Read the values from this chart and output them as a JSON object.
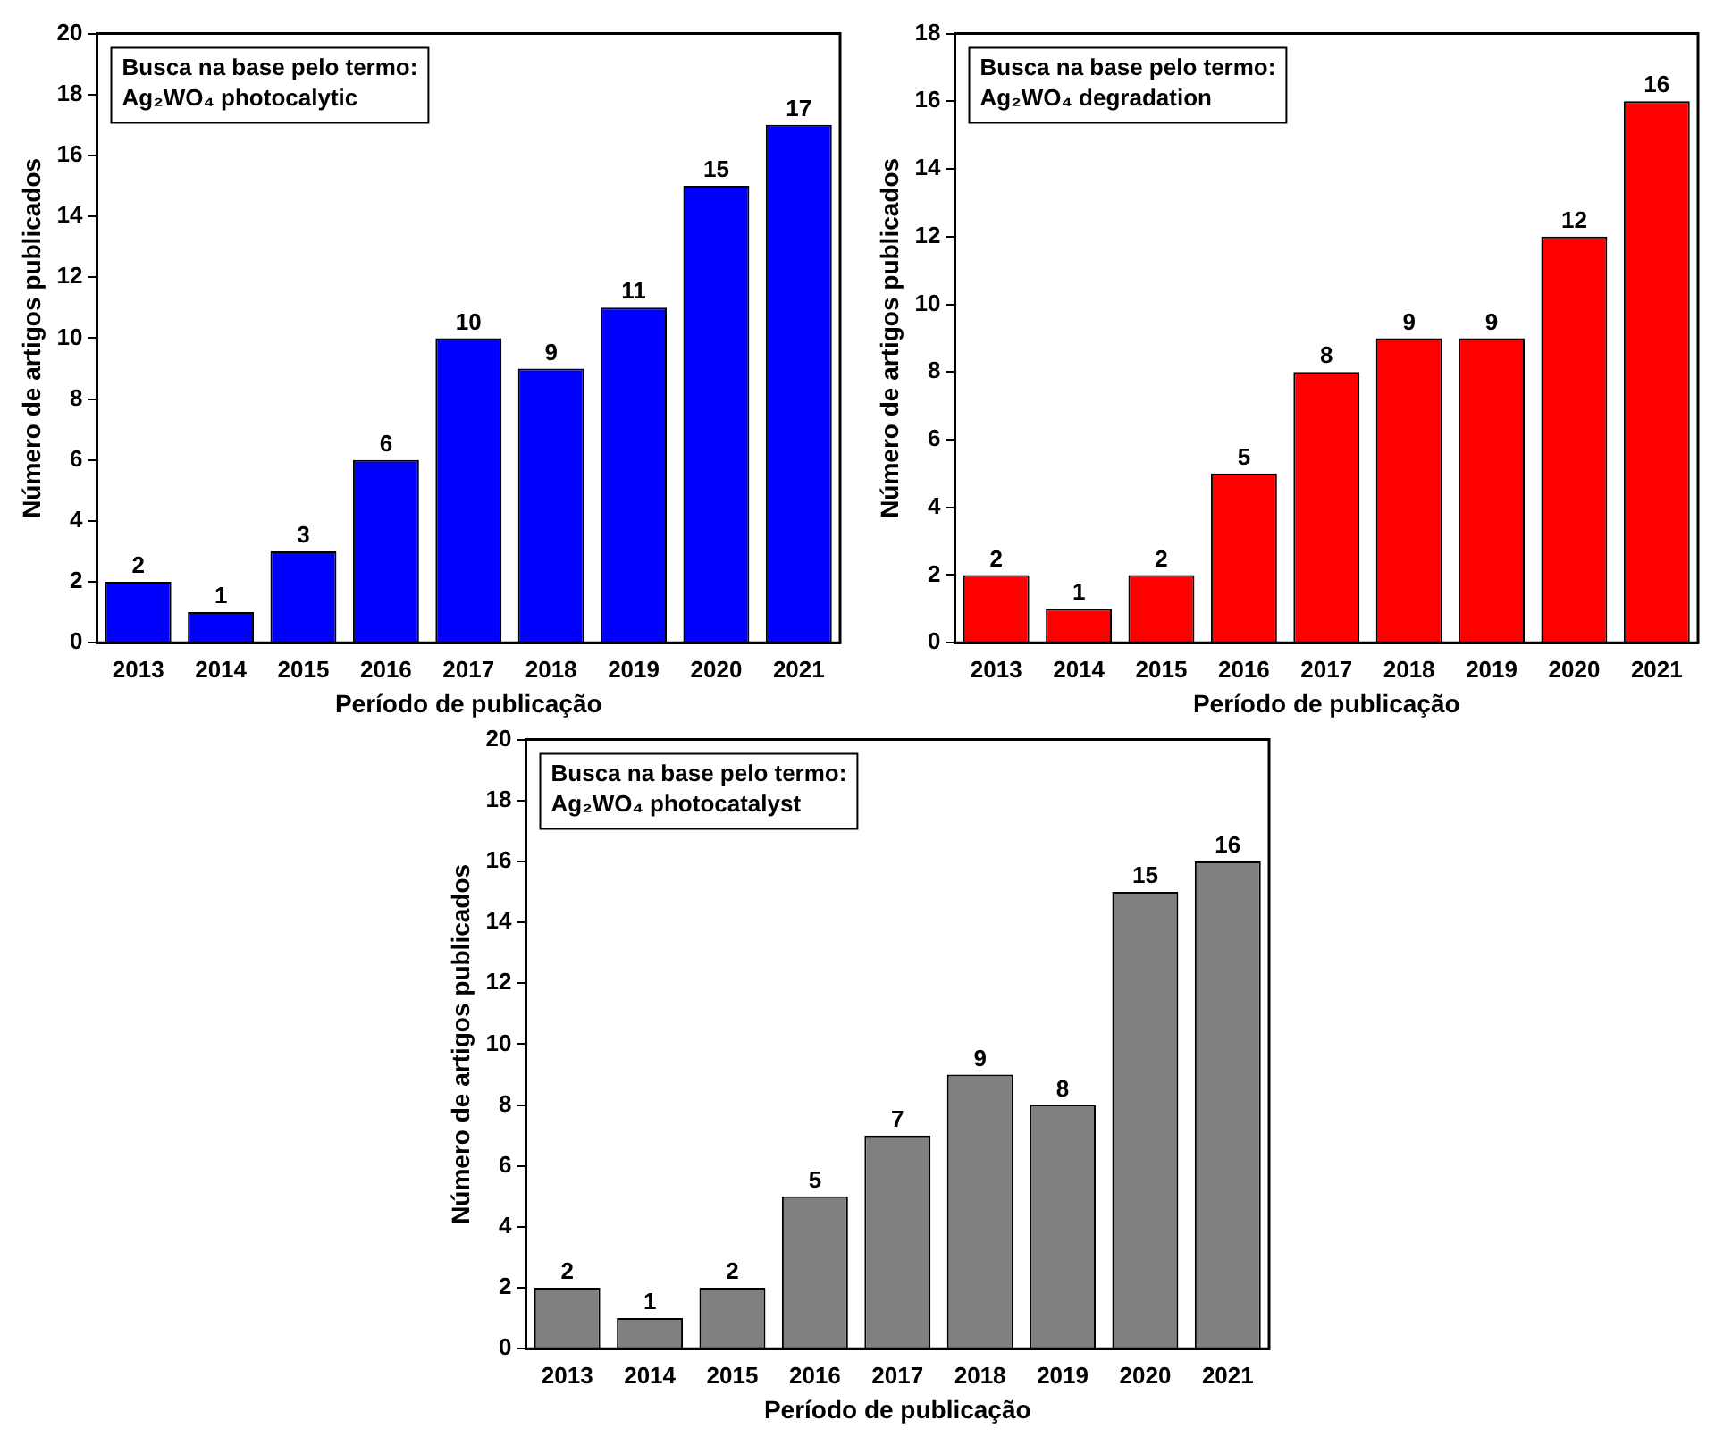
{
  "chart_data": [
    {
      "type": "bar",
      "categories": [
        "2013",
        "2014",
        "2015",
        "2016",
        "2017",
        "2018",
        "2019",
        "2020",
        "2021"
      ],
      "values": [
        2,
        1,
        3,
        6,
        10,
        9,
        11,
        15,
        17
      ],
      "color": "#0000ff",
      "ylim": [
        0,
        20
      ],
      "yticks": [
        0,
        2,
        4,
        6,
        8,
        10,
        12,
        14,
        16,
        18,
        20
      ],
      "xlabel": "Período de publicação",
      "ylabel": "Número de artigos publicados",
      "data_labels": true,
      "annotations": [
        "Busca na base pelo termo:",
        "Ag₂WO₄ photocalytic"
      ]
    },
    {
      "type": "bar",
      "categories": [
        "2013",
        "2014",
        "2015",
        "2016",
        "2017",
        "2018",
        "2019",
        "2020",
        "2021"
      ],
      "values": [
        2,
        1,
        2,
        5,
        8,
        9,
        9,
        12,
        16
      ],
      "color": "#ff0000",
      "ylim": [
        0,
        18
      ],
      "yticks": [
        0,
        2,
        4,
        6,
        8,
        10,
        12,
        14,
        16,
        18
      ],
      "xlabel": "Período de publicação",
      "ylabel": "Número de artigos publicados",
      "data_labels": true,
      "annotations": [
        "Busca na base pelo termo:",
        "Ag₂WO₄ degradation"
      ]
    },
    {
      "type": "bar",
      "categories": [
        "2013",
        "2014",
        "2015",
        "2016",
        "2017",
        "2018",
        "2019",
        "2020",
        "2021"
      ],
      "values": [
        2,
        1,
        2,
        5,
        7,
        9,
        8,
        15,
        16
      ],
      "color": "#808080",
      "ylim": [
        0,
        20
      ],
      "yticks": [
        0,
        2,
        4,
        6,
        8,
        10,
        12,
        14,
        16,
        18,
        20
      ],
      "xlabel": "Período de publicação",
      "ylabel": "Número de artigos publicados",
      "data_labels": true,
      "annotations": [
        "Busca na base pelo termo:",
        "Ag₂WO₄ photocatalyst"
      ]
    }
  ]
}
